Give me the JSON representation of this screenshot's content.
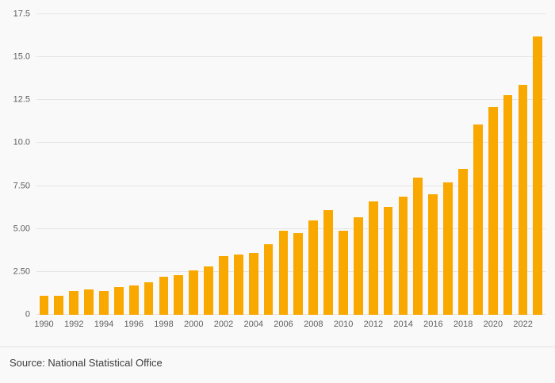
{
  "footer": {
    "source": "Source: National Statistical Office"
  },
  "chart_data": {
    "type": "bar",
    "title": "",
    "xlabel": "",
    "ylabel": "",
    "x": [
      1990,
      1991,
      1992,
      1993,
      1994,
      1995,
      1996,
      1997,
      1998,
      1999,
      2000,
      2001,
      2002,
      2003,
      2004,
      2005,
      2006,
      2007,
      2008,
      2009,
      2010,
      2011,
      2012,
      2013,
      2014,
      2015,
      2016,
      2017,
      2018,
      2019,
      2020,
      2021,
      2022,
      2023
    ],
    "values": [
      1.1,
      1.1,
      1.4,
      1.5,
      1.4,
      1.6,
      1.7,
      1.9,
      2.2,
      2.3,
      2.6,
      2.8,
      3.4,
      3.5,
      3.6,
      4.1,
      4.9,
      4.75,
      5.5,
      6.1,
      4.9,
      5.7,
      6.6,
      6.3,
      6.9,
      8.0,
      7.0,
      7.7,
      8.5,
      11.1,
      12.1,
      12.8,
      13.4,
      16.2
    ],
    "ylim": [
      0,
      17.5
    ],
    "yticks": [
      {
        "v": 0,
        "label": "0"
      },
      {
        "v": 2.5,
        "label": "2.50"
      },
      {
        "v": 5,
        "label": "5.00"
      },
      {
        "v": 7.5,
        "label": "7.50"
      },
      {
        "v": 10,
        "label": "10.0"
      },
      {
        "v": 12.5,
        "label": "12.5"
      },
      {
        "v": 15,
        "label": "15.0"
      },
      {
        "v": 17.5,
        "label": "17.5"
      }
    ],
    "xtick_years": [
      1990,
      1992,
      1994,
      1996,
      1998,
      2000,
      2002,
      2004,
      2006,
      2008,
      2010,
      2012,
      2014,
      2016,
      2018,
      2020,
      2022
    ],
    "bar_color": "#F9A800",
    "grid": true,
    "legend": false,
    "background": "#f9f9f9"
  }
}
